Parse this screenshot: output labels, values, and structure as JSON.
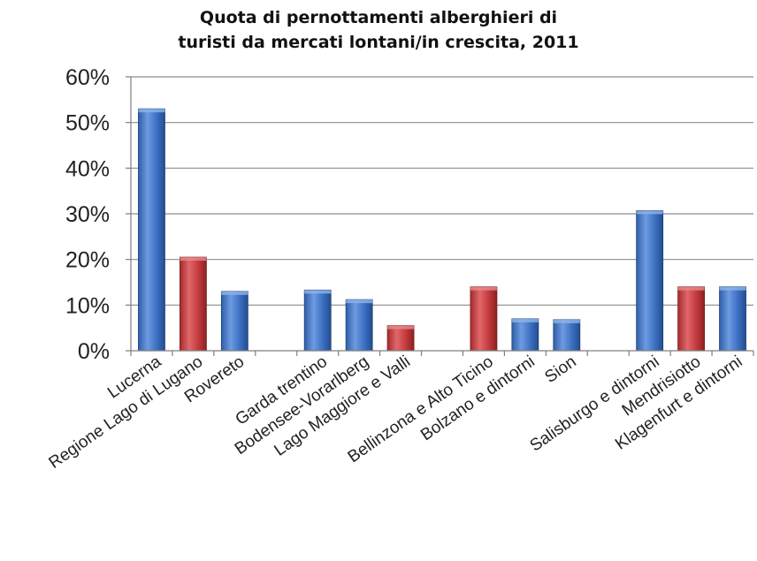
{
  "chart_data": {
    "type": "bar",
    "title_lines": [
      "Quota di pernottamenti alberghieri di",
      "turisti da mercati lontani/in crescita, 2011"
    ],
    "xlabel": "",
    "ylabel": "",
    "ylim": [
      0,
      60
    ],
    "yticks": [
      "0%",
      "10%",
      "20%",
      "30%",
      "40%",
      "50%",
      "60%"
    ],
    "grid": true,
    "legend": "none",
    "categories": [
      "Lucerna",
      "Regione Lago di Lugano",
      "Rovereto",
      "",
      "Garda trentino",
      "Bodensee-Vorarlberg",
      "Lago Maggiore e Valli",
      "",
      "Bellinzona e Alto Ticino",
      "Bolzano e dintorni",
      "Sion",
      "",
      "Salisburgo e dintorni",
      "Mendrisiotto",
      "Klagenfurt e dintorni"
    ],
    "values": [
      53,
      20.5,
      13,
      null,
      13.3,
      11.2,
      5.5,
      null,
      14,
      7,
      6.8,
      null,
      30.7,
      14,
      14
    ],
    "bar_colors": [
      "blue",
      "red",
      "blue",
      null,
      "blue",
      "blue",
      "red",
      null,
      "red",
      "blue",
      "blue",
      null,
      "blue",
      "red",
      "blue"
    ],
    "colors": {
      "blue": "#3a6fc0",
      "red": "#c0393b",
      "grid": "#8c8c8c",
      "axis": "#7f7f7f"
    }
  }
}
